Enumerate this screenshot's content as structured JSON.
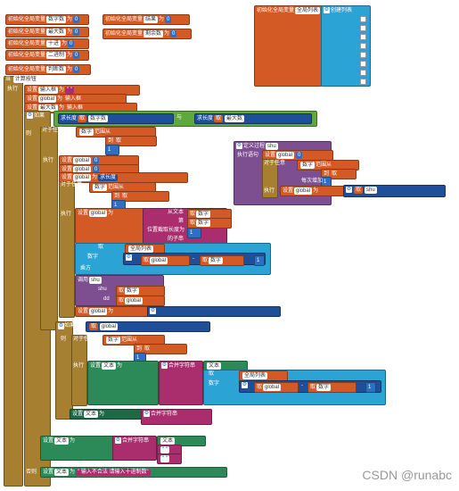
{
  "globals": {
    "init": "初始化全局变量",
    "as": "为",
    "count_name": "数字数",
    "zero": "0",
    "num": "0",
    "digits_name": "数字数",
    "maxlen_name": "最大数",
    "hex_name": "十进",
    "bin_name": "二进制",
    "result_name": "判断数",
    "list_name": "全局列表",
    "right_name": "剩余数",
    "empty_text": "\" \"",
    "create_list": "创建列表",
    "shu_label": "结果",
    "maxdigits": "最大数"
  },
  "main": {
    "when": "当",
    "event": "计算按钮",
    "click": "被点击",
    "do": "执行",
    "set": "设置",
    "text": "文本",
    "to": "为",
    "input": "输入框",
    "global": "global",
    "max": "最大数",
    "if_l": "如果",
    "gt": "求长度",
    "get": "取",
    "and": "与",
    "then": "则",
    "for_each": "对于任意",
    "number": "数字",
    "from": "范围从",
    "to2": "到",
    "by": "每次增加",
    "sub_from": "从文本",
    "start": "第",
    "len": "位置截取长度为",
    "str": "的子串",
    "proc_call": "调用",
    "shu": "shu",
    "dd": "dd",
    "join": "合并字符串",
    "else": "否则",
    "trailer_text": "\" 输入不合法 请输入十进制数\"",
    "proc": "定义过程",
    "with_return": "执行语句",
    "digit_val": "数字",
    "pow": "乘方",
    "one": "1",
    "two": "2",
    "minus": "-",
    "slash": "/"
  },
  "watermark": "CSDN @runabc",
  "colors": {
    "orange": "#d35a24",
    "blue": "#2e6fc6",
    "gold": "#a77f31",
    "magenta": "#aa2e6e",
    "teal": "#2c8a59",
    "cyan": "#2ba3d4",
    "purple": "#7d4f91",
    "green": "#5ea83c"
  }
}
